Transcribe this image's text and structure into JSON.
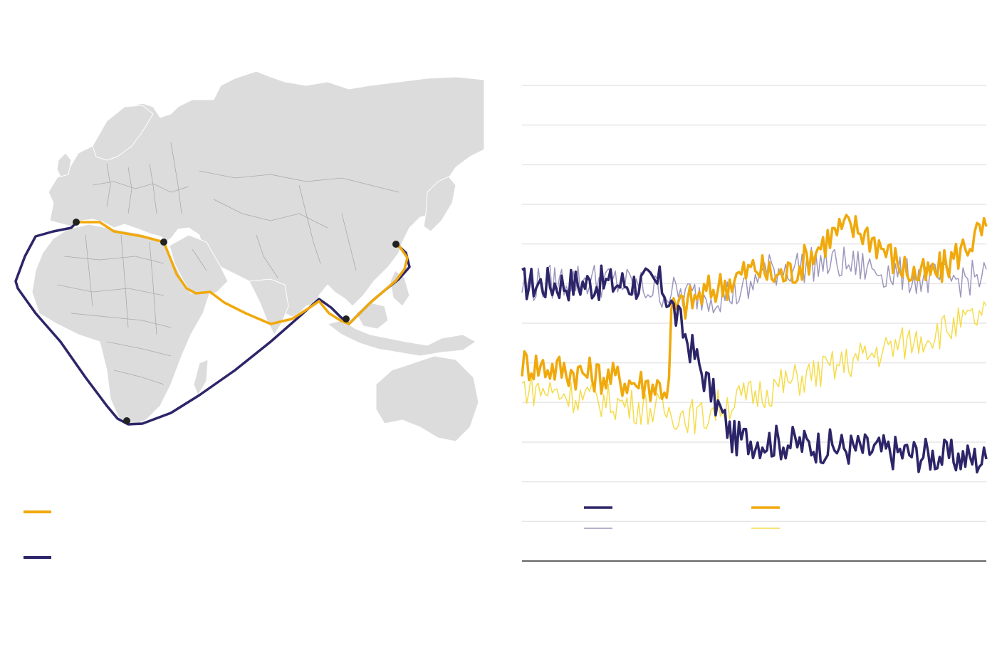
{
  "colors": {
    "background": "#ffffff",
    "land": "#dcdcdc",
    "border": "#aaaaaa",
    "suez_route": "#f0a90c",
    "cape_route": "#2c2569",
    "port": "#222222",
    "grid": "#e6e6e6",
    "baseline": "#333333"
  },
  "map": {
    "ports": [
      {
        "id": "rotterdam-area",
        "name": ""
      },
      {
        "id": "suez",
        "name": ""
      },
      {
        "id": "singapore",
        "name": ""
      },
      {
        "id": "shanghai",
        "name": ""
      },
      {
        "id": "cape-of-good-hope",
        "name": ""
      }
    ],
    "legend": [
      {
        "key": "suez",
        "color": "#f0a90c",
        "label": ""
      },
      {
        "key": "cape",
        "color": "#2c2569",
        "label": ""
      }
    ]
  },
  "chart_data": {
    "type": "line",
    "title": "",
    "xlabel": "",
    "ylabel": "",
    "x_range": [
      0,
      199
    ],
    "ylim": [
      0,
      12
    ],
    "gridlines": [
      1,
      2,
      3,
      4,
      5,
      6,
      7,
      8,
      9,
      10,
      11,
      12
    ],
    "grid": true,
    "legend_position": "bottom",
    "series": [
      {
        "key": "cape-thick",
        "color": "#2c2569",
        "width": 3.5,
        "opacity": 1.0,
        "values": []
      },
      {
        "key": "suez-thick",
        "color": "#f0a90c",
        "width": 3.5,
        "opacity": 1.0,
        "values": []
      },
      {
        "key": "cape-thin",
        "color": "#9d97bd",
        "width": 1.5,
        "opacity": 1.0,
        "values": []
      },
      {
        "key": "suez-thin",
        "color": "#f5dc4a",
        "width": 1.5,
        "opacity": 1.0,
        "values": []
      }
    ],
    "legend": [
      {
        "key": "cape-thick",
        "color": "#2c2569",
        "width": 3.5
      },
      {
        "key": "suez-thick",
        "color": "#f0a90c",
        "width": 3.5
      },
      {
        "key": "cape-thin",
        "color": "#9d97bd",
        "width": 1.5
      },
      {
        "key": "suez-thin",
        "color": "#f5dc4a",
        "width": 1.5
      }
    ]
  }
}
